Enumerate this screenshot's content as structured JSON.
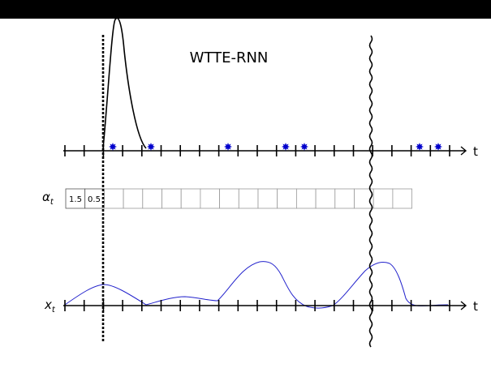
{
  "title": "WTTE-RNN",
  "axis_time_label": "t",
  "alpha_label": "α",
  "alpha_subscript": "t",
  "x_label": "x",
  "x_subscript": "t",
  "alpha_cells": [
    "1.5",
    "0.5"
  ],
  "alpha_cell_count": 18,
  "tick_count": 21,
  "event_count": 7,
  "colors": {
    "event_marker": "#0000cc",
    "feature_line": "#2222cc",
    "ink": "#000000",
    "cell_border": "#999999",
    "window_bar": "#000000"
  }
}
